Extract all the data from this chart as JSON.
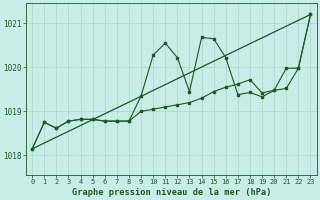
{
  "title": "Graphe pression niveau de la mer (hPa)",
  "bg_color": "#c8ece8",
  "grid_color": "#a8d4ce",
  "line_color": "#1a5c1a",
  "marker_color": "#1a5c1a",
  "xlim": [
    -0.5,
    23.5
  ],
  "ylim": [
    1017.55,
    1021.45
  ],
  "yticks": [
    1018,
    1019,
    1020,
    1021
  ],
  "xticks": [
    0,
    1,
    2,
    3,
    4,
    5,
    6,
    7,
    8,
    9,
    10,
    11,
    12,
    13,
    14,
    15,
    16,
    17,
    18,
    19,
    20,
    21,
    22,
    23
  ],
  "series_jagged": {
    "x": [
      0,
      1,
      2,
      3,
      4,
      5,
      6,
      7,
      8,
      9,
      10,
      11,
      12,
      13,
      14,
      15,
      16,
      17,
      18,
      19,
      20,
      21,
      22,
      23
    ],
    "y": [
      1018.15,
      1018.75,
      1018.62,
      1018.78,
      1018.82,
      1018.82,
      1018.78,
      1018.78,
      1018.78,
      1019.35,
      1020.28,
      1020.55,
      1020.22,
      1019.45,
      1020.68,
      1020.65,
      1020.22,
      1019.38,
      1019.43,
      1019.33,
      1019.48,
      1019.98,
      1019.98,
      1021.2
    ]
  },
  "series_smooth": {
    "x": [
      0,
      1,
      2,
      3,
      4,
      5,
      6,
      7,
      8,
      9,
      10,
      11,
      12,
      13,
      14,
      15,
      16,
      17,
      18,
      19,
      20,
      21,
      22,
      23
    ],
    "y": [
      1018.15,
      1018.75,
      1018.62,
      1018.78,
      1018.82,
      1018.82,
      1018.78,
      1018.78,
      1018.78,
      1019.0,
      1019.05,
      1019.1,
      1019.15,
      1019.2,
      1019.3,
      1019.45,
      1019.55,
      1019.62,
      1019.72,
      1019.42,
      1019.48,
      1019.52,
      1019.98,
      1021.2
    ]
  },
  "series_trend": {
    "x": [
      0,
      23
    ],
    "y": [
      1018.15,
      1021.2
    ]
  }
}
